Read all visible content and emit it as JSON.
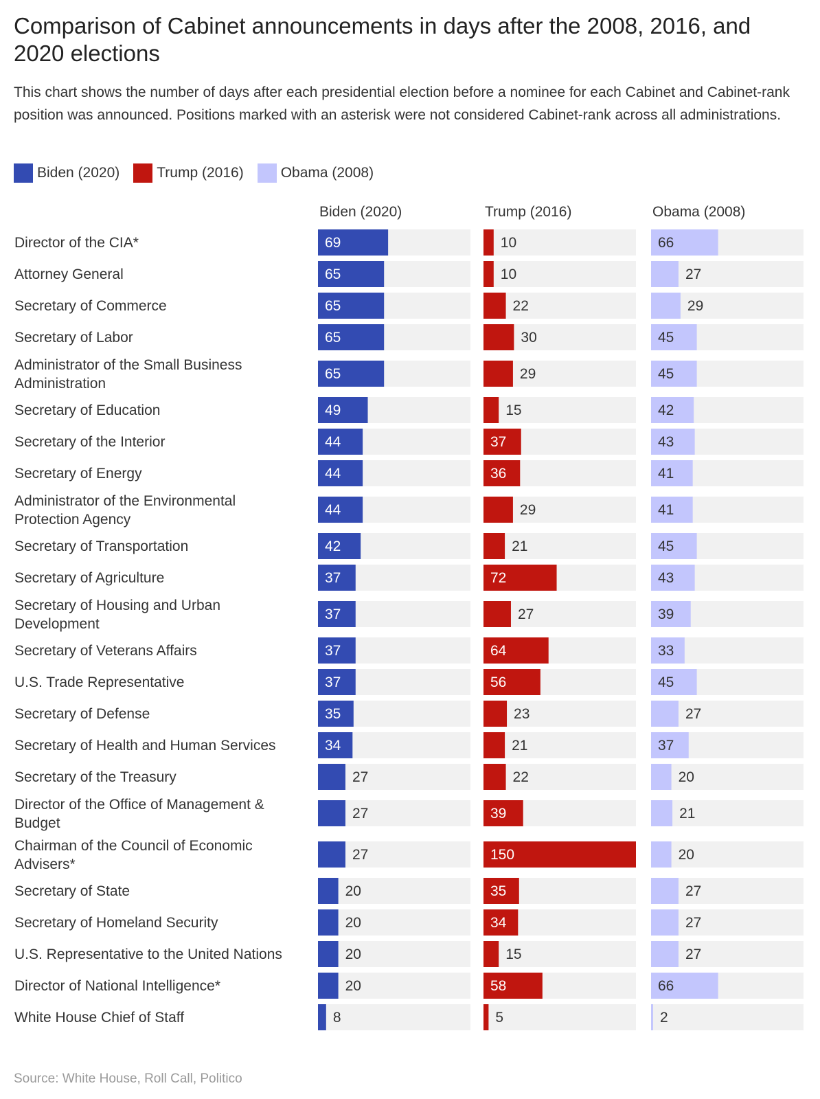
{
  "title": "Comparison of Cabinet announcements in days after the 2008, 2016, and 2020 elections",
  "subtitle": "This chart shows the number of days after each presidential election before a nominee for each Cabinet and Cabinet-rank position was announced. Positions marked with an asterisk were not considered Cabinet-rank across all administrations.",
  "source": "Source: White House, Roll Call, Politico",
  "colors": {
    "biden": "#334bb2",
    "trump": "#c0160f",
    "obama": "#c3c6fd",
    "track": "#f1f1f1"
  },
  "chart_data": {
    "type": "bar",
    "orientation": "horizontal",
    "categories": [
      "Director of the CIA*",
      "Attorney General",
      "Secretary of Commerce",
      "Secretary of Labor",
      "Administrator of the Small Business Administration",
      "Secretary of Education",
      "Secretary of the Interior",
      "Secretary of Energy",
      "Administrator of the Environmental Protection Agency",
      "Secretary of Transportation",
      "Secretary of Agriculture",
      "Secretary of Housing and Urban Development",
      "Secretary of Veterans Affairs",
      "U.S. Trade Representative",
      "Secretary of Defense",
      "Secretary of Health and Human Services",
      "Secretary of the Treasury",
      "Director of the Office of Management & Budget",
      "Chairman of the Council of Economic Advisers*",
      "Secretary of State",
      "Secretary of Homeland Security",
      "U.S. Representative to the United Nations",
      "Director of National Intelligence*",
      "White House Chief of Staff"
    ],
    "series": [
      {
        "name": "Biden (2020)",
        "values": [
          69,
          65,
          65,
          65,
          65,
          49,
          44,
          44,
          44,
          42,
          37,
          37,
          37,
          37,
          35,
          34,
          27,
          27,
          27,
          20,
          20,
          20,
          20,
          8
        ]
      },
      {
        "name": "Trump (2016)",
        "values": [
          10,
          10,
          22,
          30,
          29,
          15,
          37,
          36,
          29,
          21,
          72,
          27,
          64,
          56,
          23,
          21,
          22,
          39,
          150,
          35,
          34,
          15,
          58,
          5
        ]
      },
      {
        "name": "Obama (2008)",
        "values": [
          66,
          27,
          29,
          45,
          45,
          42,
          43,
          41,
          41,
          45,
          43,
          39,
          33,
          45,
          27,
          37,
          20,
          21,
          20,
          27,
          27,
          27,
          66,
          2
        ]
      }
    ],
    "xlim": [
      0,
      150
    ],
    "legend_position": "top-left"
  }
}
